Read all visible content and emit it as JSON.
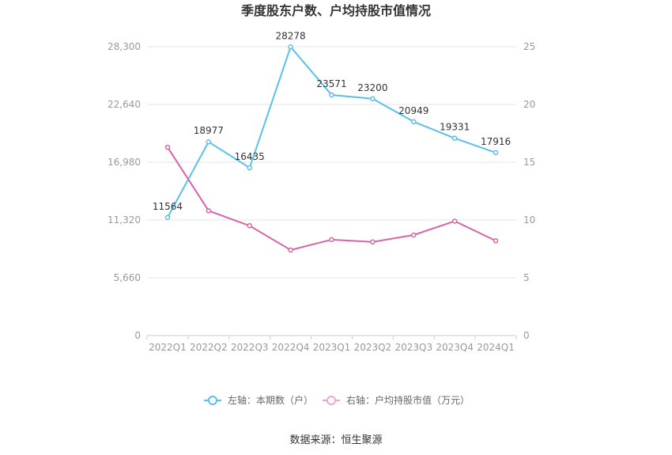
{
  "chart_data": {
    "type": "line",
    "title": "季度股东户数、户均持股市值情况",
    "categories": [
      "2022Q1",
      "2022Q2",
      "2022Q3",
      "2022Q4",
      "2023Q1",
      "2023Q2",
      "2023Q3",
      "2023Q4",
      "2024Q1"
    ],
    "y_left": {
      "ticks": [
        "0",
        "5,660",
        "11,320",
        "16,980",
        "22,640",
        "28,300"
      ],
      "ylim": [
        0,
        28300
      ]
    },
    "y_right": {
      "ticks": [
        "0",
        "5",
        "10",
        "15",
        "20",
        "25"
      ],
      "ylim": [
        0,
        25
      ]
    },
    "grid": true,
    "legend_position": "bottom",
    "series": [
      {
        "name": "左轴：本期数（户）",
        "axis": "left",
        "color": "#5bc0eb",
        "values": [
          11564,
          18977,
          16435,
          28278,
          23571,
          23200,
          20949,
          19331,
          17916
        ],
        "labels": [
          "11564",
          "18977",
          "16435",
          "28278",
          "23571",
          "23200",
          "20949",
          "19331",
          "17916"
        ]
      },
      {
        "name": "右轴：户均持股市值（万元）",
        "axis": "right",
        "color": "#d864a9",
        "values": [
          16.3,
          10.8,
          9.5,
          7.4,
          8.3,
          8.1,
          8.7,
          9.9,
          8.2
        ]
      }
    ]
  },
  "source_text": "数据来源：恒生聚源"
}
